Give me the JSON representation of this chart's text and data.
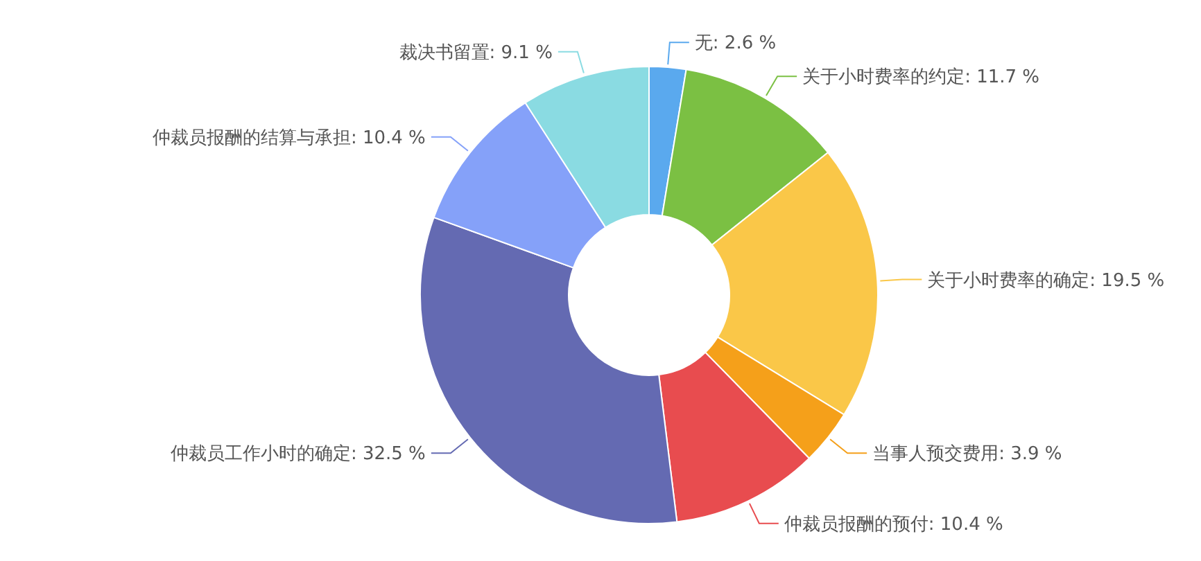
{
  "chart_data": {
    "type": "donut",
    "categories": [
      "无",
      "关于小时费率的约定",
      "关于小时费率的确定",
      "当事人预交费用",
      "仲裁员报酬的预付",
      "仲裁员工作小时的确定",
      "仲裁员报酬的结算与承担",
      "裁决书留置"
    ],
    "values": [
      2.6,
      11.7,
      19.5,
      3.9,
      10.4,
      32.5,
      10.4,
      9.1
    ],
    "value_labels": [
      "2.6 %",
      "11.7 %",
      "19.5 %",
      "3.9 %",
      "10.4 %",
      "32.5 %",
      "10.4 %",
      "9.1 %"
    ],
    "colors": [
      "#5aa9ee",
      "#7bc043",
      "#fac748",
      "#f5a01a",
      "#e84c4f",
      "#646ab2",
      "#85a1f9",
      "#8adbe2"
    ]
  }
}
